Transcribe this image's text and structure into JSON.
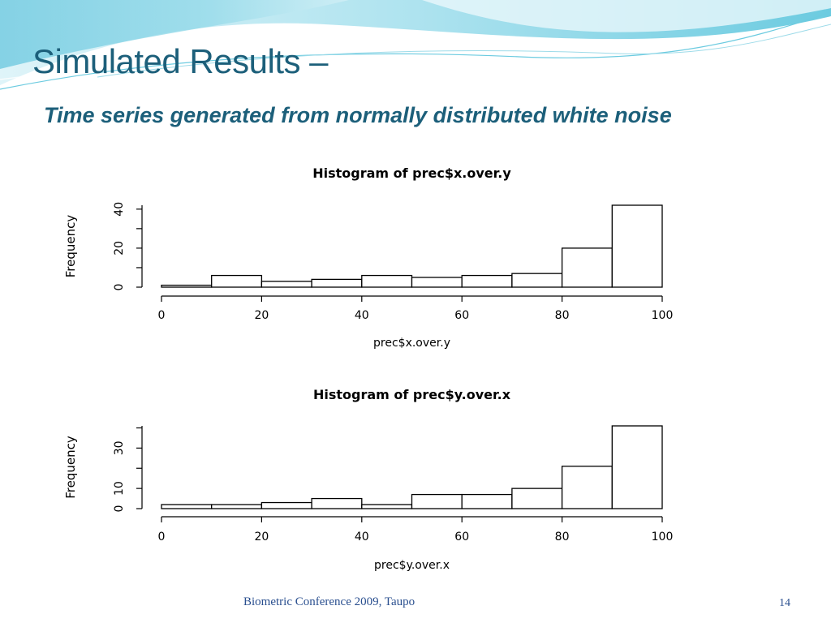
{
  "slide": {
    "title": "Simulated Results –",
    "subtitle": "Time series generated from normally distributed white noise",
    "footer": "Biometric Conference 2009, Taupo",
    "page_number": "14"
  },
  "colors": {
    "title": "#1c5f7a",
    "footer": "#2a4f8f",
    "banner_light": "#c8ecf4",
    "banner_mid": "#7fd1e2",
    "banner_dark": "#2fa8c8",
    "bar_fill": "#ffffff",
    "bar_stroke": "#000000"
  },
  "chart_data": [
    {
      "type": "bar",
      "title": "Histogram of prec$x.over.y",
      "xlabel": "prec$x.over.y",
      "ylabel": "Frequency",
      "bins": [
        [
          0,
          10
        ],
        [
          10,
          20
        ],
        [
          20,
          30
        ],
        [
          30,
          40
        ],
        [
          40,
          50
        ],
        [
          50,
          60
        ],
        [
          60,
          70
        ],
        [
          70,
          80
        ],
        [
          80,
          90
        ],
        [
          90,
          100
        ]
      ],
      "values": [
        1,
        6,
        3,
        4,
        6,
        5,
        6,
        7,
        20,
        42
      ],
      "xlim": [
        0,
        100
      ],
      "ylim": [
        0,
        42
      ],
      "xticks": [
        "0",
        "20",
        "40",
        "60",
        "80",
        "100"
      ],
      "yticks": [
        "0",
        "20",
        "40"
      ]
    },
    {
      "type": "bar",
      "title": "Histogram of prec$y.over.x",
      "xlabel": "prec$y.over.x",
      "ylabel": "Frequency",
      "bins": [
        [
          0,
          10
        ],
        [
          10,
          20
        ],
        [
          20,
          30
        ],
        [
          30,
          40
        ],
        [
          40,
          50
        ],
        [
          50,
          60
        ],
        [
          60,
          70
        ],
        [
          70,
          80
        ],
        [
          80,
          90
        ],
        [
          90,
          100
        ]
      ],
      "values": [
        2,
        2,
        3,
        5,
        2,
        7,
        7,
        10,
        21,
        41
      ],
      "xlim": [
        0,
        100
      ],
      "ylim": [
        0,
        41
      ],
      "xticks": [
        "0",
        "20",
        "40",
        "60",
        "80",
        "100"
      ],
      "yticks": [
        "0",
        "10",
        "30"
      ]
    }
  ]
}
